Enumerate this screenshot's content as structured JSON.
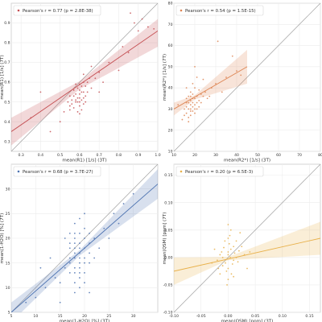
{
  "chart_data": [
    {
      "type": "scatter",
      "xlabel": "mean(R1) [1/s] (3T)",
      "ylabel": "mean(R1) [1/s] (7T)",
      "xlim": [
        0.25,
        1.0
      ],
      "ylim": [
        0.25,
        1.0
      ],
      "x_ticks": [
        "0.3",
        "0.4",
        "0.5",
        "0.6",
        "0.7",
        "0.8",
        "0.9",
        "1.0"
      ],
      "y_ticks": [
        "0.3",
        "0.4",
        "0.5",
        "0.6",
        "0.7",
        "0.8",
        "0.9"
      ],
      "legend": "Pearson's r = 0.77 (p = 2.8E-38)",
      "legend_position": "top-left",
      "identity_line": true,
      "color": "#c44e52",
      "fit": {
        "x0": 0.25,
        "y0": 0.35,
        "x1": 1.0,
        "y1": 0.86
      },
      "band": [
        {
          "x": 0.25,
          "lo": 0.28,
          "hi": 0.42
        },
        {
          "x": 0.6,
          "lo": 0.565,
          "hi": 0.605
        },
        {
          "x": 1.0,
          "lo": 0.78,
          "hi": 0.92
        }
      ],
      "points": [
        [
          0.6,
          0.52
        ],
        [
          0.58,
          0.5
        ],
        [
          0.62,
          0.55
        ],
        [
          0.55,
          0.48
        ],
        [
          0.6,
          0.56
        ],
        [
          0.63,
          0.53
        ],
        [
          0.57,
          0.47
        ],
        [
          0.61,
          0.58
        ],
        [
          0.59,
          0.45
        ],
        [
          0.64,
          0.6
        ],
        [
          0.56,
          0.51
        ],
        [
          0.62,
          0.49
        ],
        [
          0.58,
          0.54
        ],
        [
          0.6,
          0.5
        ],
        [
          0.65,
          0.62
        ],
        [
          0.55,
          0.46
        ],
        [
          0.59,
          0.57
        ],
        [
          0.61,
          0.51
        ],
        [
          0.62,
          0.64
        ],
        [
          0.57,
          0.53
        ],
        [
          0.6,
          0.48
        ],
        [
          0.66,
          0.57
        ],
        [
          0.54,
          0.5
        ],
        [
          0.58,
          0.59
        ],
        [
          0.63,
          0.5
        ],
        [
          0.6,
          0.54
        ],
        [
          0.61,
          0.46
        ],
        [
          0.59,
          0.52
        ],
        [
          0.57,
          0.56
        ],
        [
          0.62,
          0.52
        ],
        [
          0.64,
          0.55
        ],
        [
          0.56,
          0.49
        ],
        [
          0.61,
          0.55
        ],
        [
          0.58,
          0.51
        ],
        [
          0.6,
          0.44
        ],
        [
          0.63,
          0.58
        ],
        [
          0.59,
          0.5
        ],
        [
          0.62,
          0.6
        ],
        [
          0.55,
          0.53
        ],
        [
          0.6,
          0.59
        ],
        [
          0.4,
          0.55
        ],
        [
          0.68,
          0.62
        ],
        [
          0.82,
          0.78
        ],
        [
          0.85,
          0.75
        ],
        [
          0.9,
          0.86
        ],
        [
          0.95,
          0.88
        ],
        [
          0.88,
          0.9
        ],
        [
          0.7,
          0.65
        ],
        [
          0.72,
          0.6
        ],
        [
          0.5,
          0.4
        ],
        [
          0.45,
          0.35
        ],
        [
          0.92,
          0.92
        ],
        [
          0.75,
          0.7
        ],
        [
          0.8,
          0.66
        ],
        [
          0.66,
          0.68
        ],
        [
          0.52,
          0.45
        ],
        [
          0.7,
          0.55
        ],
        [
          0.86,
          0.95
        ],
        [
          0.98,
          0.87
        ],
        [
          0.35,
          0.42
        ]
      ]
    },
    {
      "type": "scatter",
      "xlabel": "mean(R2*) [1/s] (3T)",
      "ylabel": "mean(R2*) [1/s] (7T)",
      "xlim": [
        10,
        80
      ],
      "ylim": [
        10,
        80
      ],
      "x_ticks": [
        "10",
        "20",
        "30",
        "40",
        "50",
        "60",
        "70",
        "80"
      ],
      "y_ticks": [
        "10",
        "20",
        "30",
        "40",
        "50",
        "60",
        "70",
        "80"
      ],
      "legend": "Pearson's r = 0.54 (p = 1.5E-15)",
      "legend_position": "top-left",
      "identity_line": true,
      "color": "#dd8452",
      "fit": {
        "x0": 10,
        "y0": 30,
        "x1": 45,
        "y1": 50
      },
      "band": [
        {
          "x": 10,
          "lo": 27,
          "hi": 33
        },
        {
          "x": 20,
          "lo": 34.5,
          "hi": 36.5
        },
        {
          "x": 45,
          "lo": 42,
          "hi": 58
        }
      ],
      "points": [
        [
          17,
          33
        ],
        [
          18,
          30
        ],
        [
          19,
          35
        ],
        [
          16,
          28
        ],
        [
          20,
          32
        ],
        [
          21,
          36
        ],
        [
          18,
          38
        ],
        [
          17,
          26
        ],
        [
          22,
          34
        ],
        [
          19,
          29
        ],
        [
          16,
          31
        ],
        [
          18,
          34
        ],
        [
          20,
          40
        ],
        [
          23,
          37
        ],
        [
          17,
          24
        ],
        [
          19,
          33
        ],
        [
          21,
          30
        ],
        [
          15,
          27
        ],
        [
          18,
          36
        ],
        [
          20,
          28
        ],
        [
          22,
          39
        ],
        [
          16,
          35
        ],
        [
          19,
          42
        ],
        [
          17,
          30
        ],
        [
          24,
          36
        ],
        [
          20,
          35
        ],
        [
          18,
          27
        ],
        [
          21,
          33
        ],
        [
          19,
          31
        ],
        [
          16,
          33
        ],
        [
          25,
          38
        ],
        [
          17,
          36
        ],
        [
          20,
          30
        ],
        [
          22,
          31
        ],
        [
          18,
          32
        ],
        [
          15,
          30
        ],
        [
          19,
          37
        ],
        [
          21,
          45
        ],
        [
          23,
          33
        ],
        [
          18,
          29
        ],
        [
          28,
          40
        ],
        [
          30,
          42
        ],
        [
          35,
          45
        ],
        [
          40,
          48
        ],
        [
          26,
          35
        ],
        [
          33,
          38
        ],
        [
          38,
          55
        ],
        [
          24,
          44
        ],
        [
          27,
          36
        ],
        [
          31,
          62
        ],
        [
          20,
          50
        ],
        [
          42,
          46
        ],
        [
          14,
          25
        ],
        [
          16,
          40
        ],
        [
          12,
          32
        ]
      ]
    },
    {
      "type": "scatter",
      "xlabel": "mean(1-H2O) [%] (3T)",
      "ylabel": "mean(1-H2O) [%] (7T)",
      "xlim": [
        5,
        35
      ],
      "ylim": [
        5,
        35
      ],
      "x_ticks": [
        "5",
        "10",
        "15",
        "20",
        "25",
        "30"
      ],
      "y_ticks": [
        "5",
        "10",
        "15",
        "20",
        "25",
        "30"
      ],
      "legend": "Pearson's r = 0.68 (p = 3.7E-27)",
      "legend_position": "top-left",
      "identity_line": true,
      "color": "#4c72b0",
      "fit": {
        "x0": 5,
        "y0": 5,
        "x1": 35,
        "y1": 31
      },
      "band": [
        {
          "x": 5,
          "lo": 3,
          "hi": 7
        },
        {
          "x": 19,
          "lo": 16.5,
          "hi": 17.6
        },
        {
          "x": 35,
          "lo": 28,
          "hi": 34
        }
      ],
      "points": [
        [
          18,
          17
        ],
        [
          19,
          15
        ],
        [
          20,
          18
        ],
        [
          17,
          16
        ],
        [
          18,
          20
        ],
        [
          19,
          12
        ],
        [
          21,
          19
        ],
        [
          18,
          14
        ],
        [
          20,
          22
        ],
        [
          17,
          13
        ],
        [
          19,
          17
        ],
        [
          18,
          19
        ],
        [
          20,
          16
        ],
        [
          19,
          21
        ],
        [
          17,
          18
        ],
        [
          18,
          11
        ],
        [
          21,
          15
        ],
        [
          19,
          24
        ],
        [
          20,
          13
        ],
        [
          18,
          16
        ],
        [
          17,
          21
        ],
        [
          19,
          18
        ],
        [
          20,
          20
        ],
        [
          18,
          9
        ],
        [
          19,
          14
        ],
        [
          21,
          17
        ],
        [
          17,
          15
        ],
        [
          18,
          23
        ],
        [
          20,
          11
        ],
        [
          19,
          19
        ],
        [
          18,
          18
        ],
        [
          20,
          15
        ],
        [
          19,
          10
        ],
        [
          17,
          19
        ],
        [
          21,
          21
        ],
        [
          18,
          13
        ],
        [
          20,
          25
        ],
        [
          19,
          16
        ],
        [
          18,
          21
        ],
        [
          19,
          13
        ],
        [
          12,
          10
        ],
        [
          14,
          12
        ],
        [
          15,
          11
        ],
        [
          16,
          14
        ],
        [
          22,
          20
        ],
        [
          24,
          22
        ],
        [
          26,
          25
        ],
        [
          28,
          27
        ],
        [
          30,
          29
        ],
        [
          10,
          8
        ],
        [
          8,
          7
        ],
        [
          25,
          20
        ],
        [
          23,
          18
        ],
        [
          22,
          16
        ],
        [
          13,
          16
        ],
        [
          16,
          20
        ],
        [
          21,
          9
        ],
        [
          15,
          7
        ],
        [
          11,
          14
        ],
        [
          27,
          23
        ]
      ]
    },
    {
      "type": "scatter",
      "xlabel": "mean(QSM) [ppm] (3T)",
      "ylabel": "mean(QSM) [ppm] (7T)",
      "xlim": [
        -0.1,
        0.17
      ],
      "ylim": [
        -0.1,
        0.17
      ],
      "x_ticks": [
        "-0.10",
        "-0.05",
        "0.00",
        "0.05",
        "0.10",
        "0.15"
      ],
      "y_ticks": [
        "-0.10",
        "-0.05",
        "0.00",
        "0.05",
        "0.10",
        "0.15"
      ],
      "legend": "Pearson's r = 0.20 (p = 6.5E-3)",
      "legend_position": "top-left",
      "identity_line": true,
      "color": "#e8b04a",
      "fit": {
        "x0": -0.1,
        "y0": -0.025,
        "x1": 0.17,
        "y1": 0.035
      },
      "band": [
        {
          "x": -0.1,
          "lo": -0.05,
          "hi": 0.0
        },
        {
          "x": 0.0,
          "lo": -0.005,
          "hi": 0.001
        },
        {
          "x": 0.17,
          "lo": 0.005,
          "hi": 0.065
        }
      ],
      "points": [
        [
          -0.01,
          0.0
        ],
        [
          0.0,
          0.01
        ],
        [
          0.01,
          -0.005
        ],
        [
          -0.005,
          -0.01
        ],
        [
          0.005,
          0.015
        ],
        [
          -0.015,
          0.005
        ],
        [
          0.0,
          -0.02
        ],
        [
          0.01,
          0.02
        ],
        [
          -0.01,
          -0.015
        ],
        [
          0.015,
          0.0
        ],
        [
          0.002,
          0.025
        ],
        [
          -0.02,
          -0.005
        ],
        [
          0.0,
          0.005
        ],
        [
          0.008,
          -0.012
        ],
        [
          -0.008,
          0.018
        ],
        [
          0.012,
          0.008
        ],
        [
          -0.003,
          -0.025
        ],
        [
          0.004,
          0.0
        ],
        [
          0.02,
          0.012
        ],
        [
          -0.012,
          0.01
        ],
        [
          0.0,
          0.035
        ],
        [
          0.006,
          -0.03
        ],
        [
          -0.006,
          0.03
        ],
        [
          0.018,
          -0.008
        ],
        [
          -0.018,
          -0.02
        ],
        [
          0.003,
          0.04
        ],
        [
          0.0,
          -0.04
        ],
        [
          0.025,
          0.02
        ],
        [
          -0.025,
          0.015
        ],
        [
          0.01,
          -0.035
        ],
        [
          0.03,
          0.005
        ],
        [
          -0.03,
          -0.01
        ],
        [
          0.005,
          0.05
        ],
        [
          -0.002,
          -0.05
        ],
        [
          0.04,
          0.01
        ],
        [
          0.015,
          0.03
        ],
        [
          -0.015,
          -0.03
        ],
        [
          0.035,
          -0.02
        ],
        [
          0.0,
          0.06
        ],
        [
          0.022,
          0.045
        ]
      ]
    }
  ]
}
